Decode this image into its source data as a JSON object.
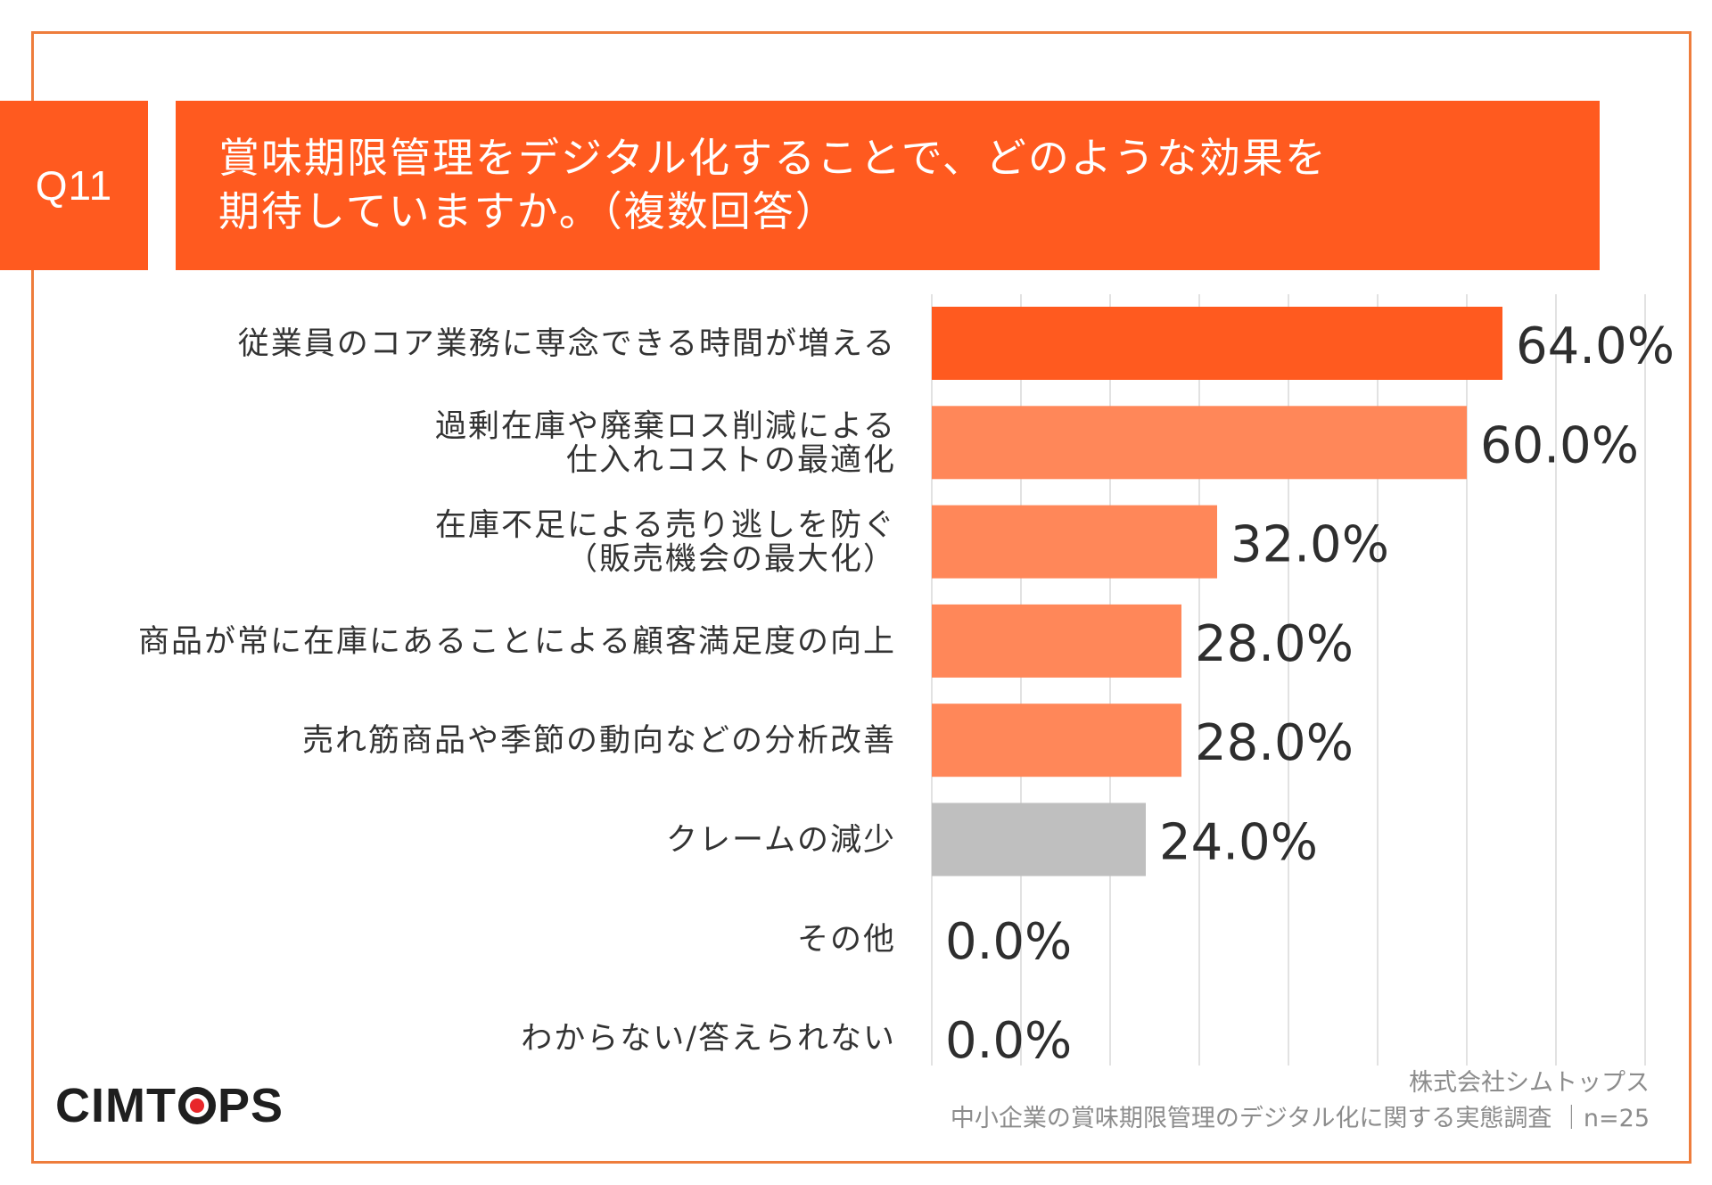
{
  "question": {
    "badge": "Q11",
    "title_line1": "賞味期限管理をデジタル化することで、どのような効果を",
    "title_line2": "期待していますか。（複数回答）"
  },
  "colors": {
    "accent": "#ff5a1f",
    "bar_top": "#ff5a1f",
    "bar_light": "#ff8759",
    "bar_other": "#bfbfbf",
    "frame": "#ee7d3c"
  },
  "chart_data": {
    "type": "bar",
    "orientation": "horizontal",
    "categories": [
      "従業員のコア業務に専念できる時間が増える",
      "過剰在庫や廃棄ロス削減による\n仕入れコストの最適化",
      "在庫不足による売り逃しを防ぐ\n（販売機会の最大化）",
      "商品が常に在庫にあることによる顧客満足度の向上",
      "売れ筋商品や季節の動向などの分析改善",
      "クレームの減少",
      "その他",
      "わからない/答えられない"
    ],
    "values": [
      64.0,
      60.0,
      32.0,
      28.0,
      28.0,
      24.0,
      0.0,
      0.0
    ],
    "value_labels": [
      "64.0%",
      "60.0%",
      "32.0%",
      "28.0%",
      "28.0%",
      "24.0%",
      "0.0%",
      "0.0%"
    ],
    "bar_colors": [
      "#ff5a1f",
      "#ff8759",
      "#ff8759",
      "#ff8759",
      "#ff8759",
      "#bfbfbf",
      "#bfbfbf",
      "#bfbfbf"
    ],
    "xlim": [
      0,
      80
    ],
    "grid": true
  },
  "footer": {
    "logo": "CIMTOPS",
    "logo_prefix": "CIMT",
    "logo_suffix": "PS",
    "source_line1": "株式会社シムトップス",
    "source_line2": "中小企業の賞味期限管理のデジタル化に関する実態調査 ｜n=25"
  }
}
